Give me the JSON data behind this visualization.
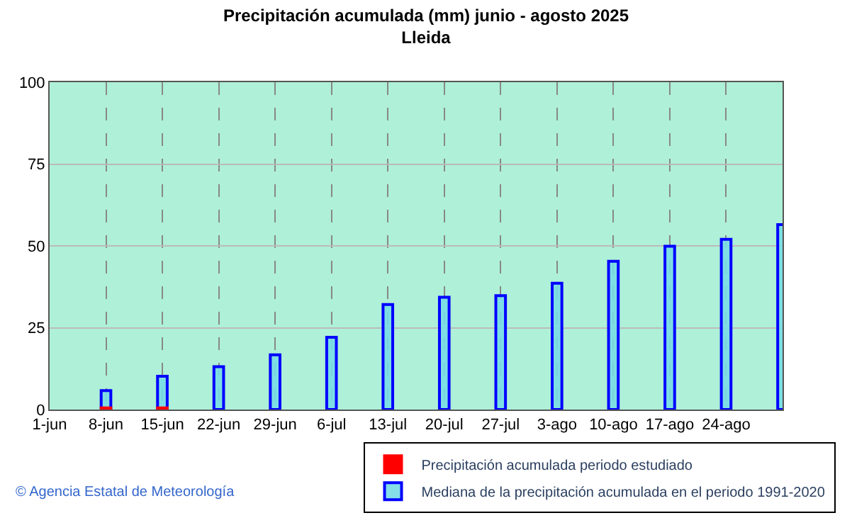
{
  "chart_data": {
    "type": "bar",
    "title": "Precipitación acumulada (mm) junio - agosto 2025",
    "subtitle": "Lleida",
    "x": [
      "2025-06-08",
      "2025-06-15",
      "2025-06-22",
      "2025-06-29",
      "2025-07-06",
      "2025-07-13",
      "2025-07-20",
      "2025-07-27",
      "2025-08-03",
      "2025-08-10",
      "2025-08-17",
      "2025-08-24",
      "2025-08-31"
    ],
    "series": [
      {
        "name": "Precipitación acumulada periodo estudiado",
        "color": "#ff0000",
        "values": [
          0.5,
          0.5,
          null,
          null,
          null,
          null,
          null,
          null,
          null,
          null,
          null,
          null,
          null
        ]
      },
      {
        "name": "Mediana de la precipitación acumulada en el periodo 1991-2020",
        "color": "#0000ff",
        "values": [
          5.8,
          10.2,
          13.1,
          16.7,
          22.1,
          32.1,
          34.3,
          34.8,
          38.6,
          45.3,
          49.9,
          52.0,
          56.5
        ]
      }
    ],
    "xlim": [
      "2025-06-01",
      "2025-08-31"
    ],
    "xticks": [
      {
        "value": "2025-06-01",
        "label": "1-jun"
      },
      {
        "value": "2025-06-08",
        "label": "8-jun"
      },
      {
        "value": "2025-06-15",
        "label": "15-jun"
      },
      {
        "value": "2025-06-22",
        "label": "22-jun"
      },
      {
        "value": "2025-06-29",
        "label": "29-jun"
      },
      {
        "value": "2025-07-06",
        "label": "6-jul"
      },
      {
        "value": "2025-07-13",
        "label": "13-jul"
      },
      {
        "value": "2025-07-20",
        "label": "20-jul"
      },
      {
        "value": "2025-07-27",
        "label": "27-jul"
      },
      {
        "value": "2025-08-03",
        "label": "3-ago"
      },
      {
        "value": "2025-08-10",
        "label": "10-ago"
      },
      {
        "value": "2025-08-17",
        "label": "17-ago"
      },
      {
        "value": "2025-08-24",
        "label": "24-ago"
      }
    ],
    "ylim": [
      0,
      100
    ],
    "yticks": [
      0,
      25,
      50,
      75,
      100
    ],
    "grid": true,
    "legend": "bottom",
    "annotations": [
      "© Agencia Estatal de Meteorología"
    ]
  }
}
